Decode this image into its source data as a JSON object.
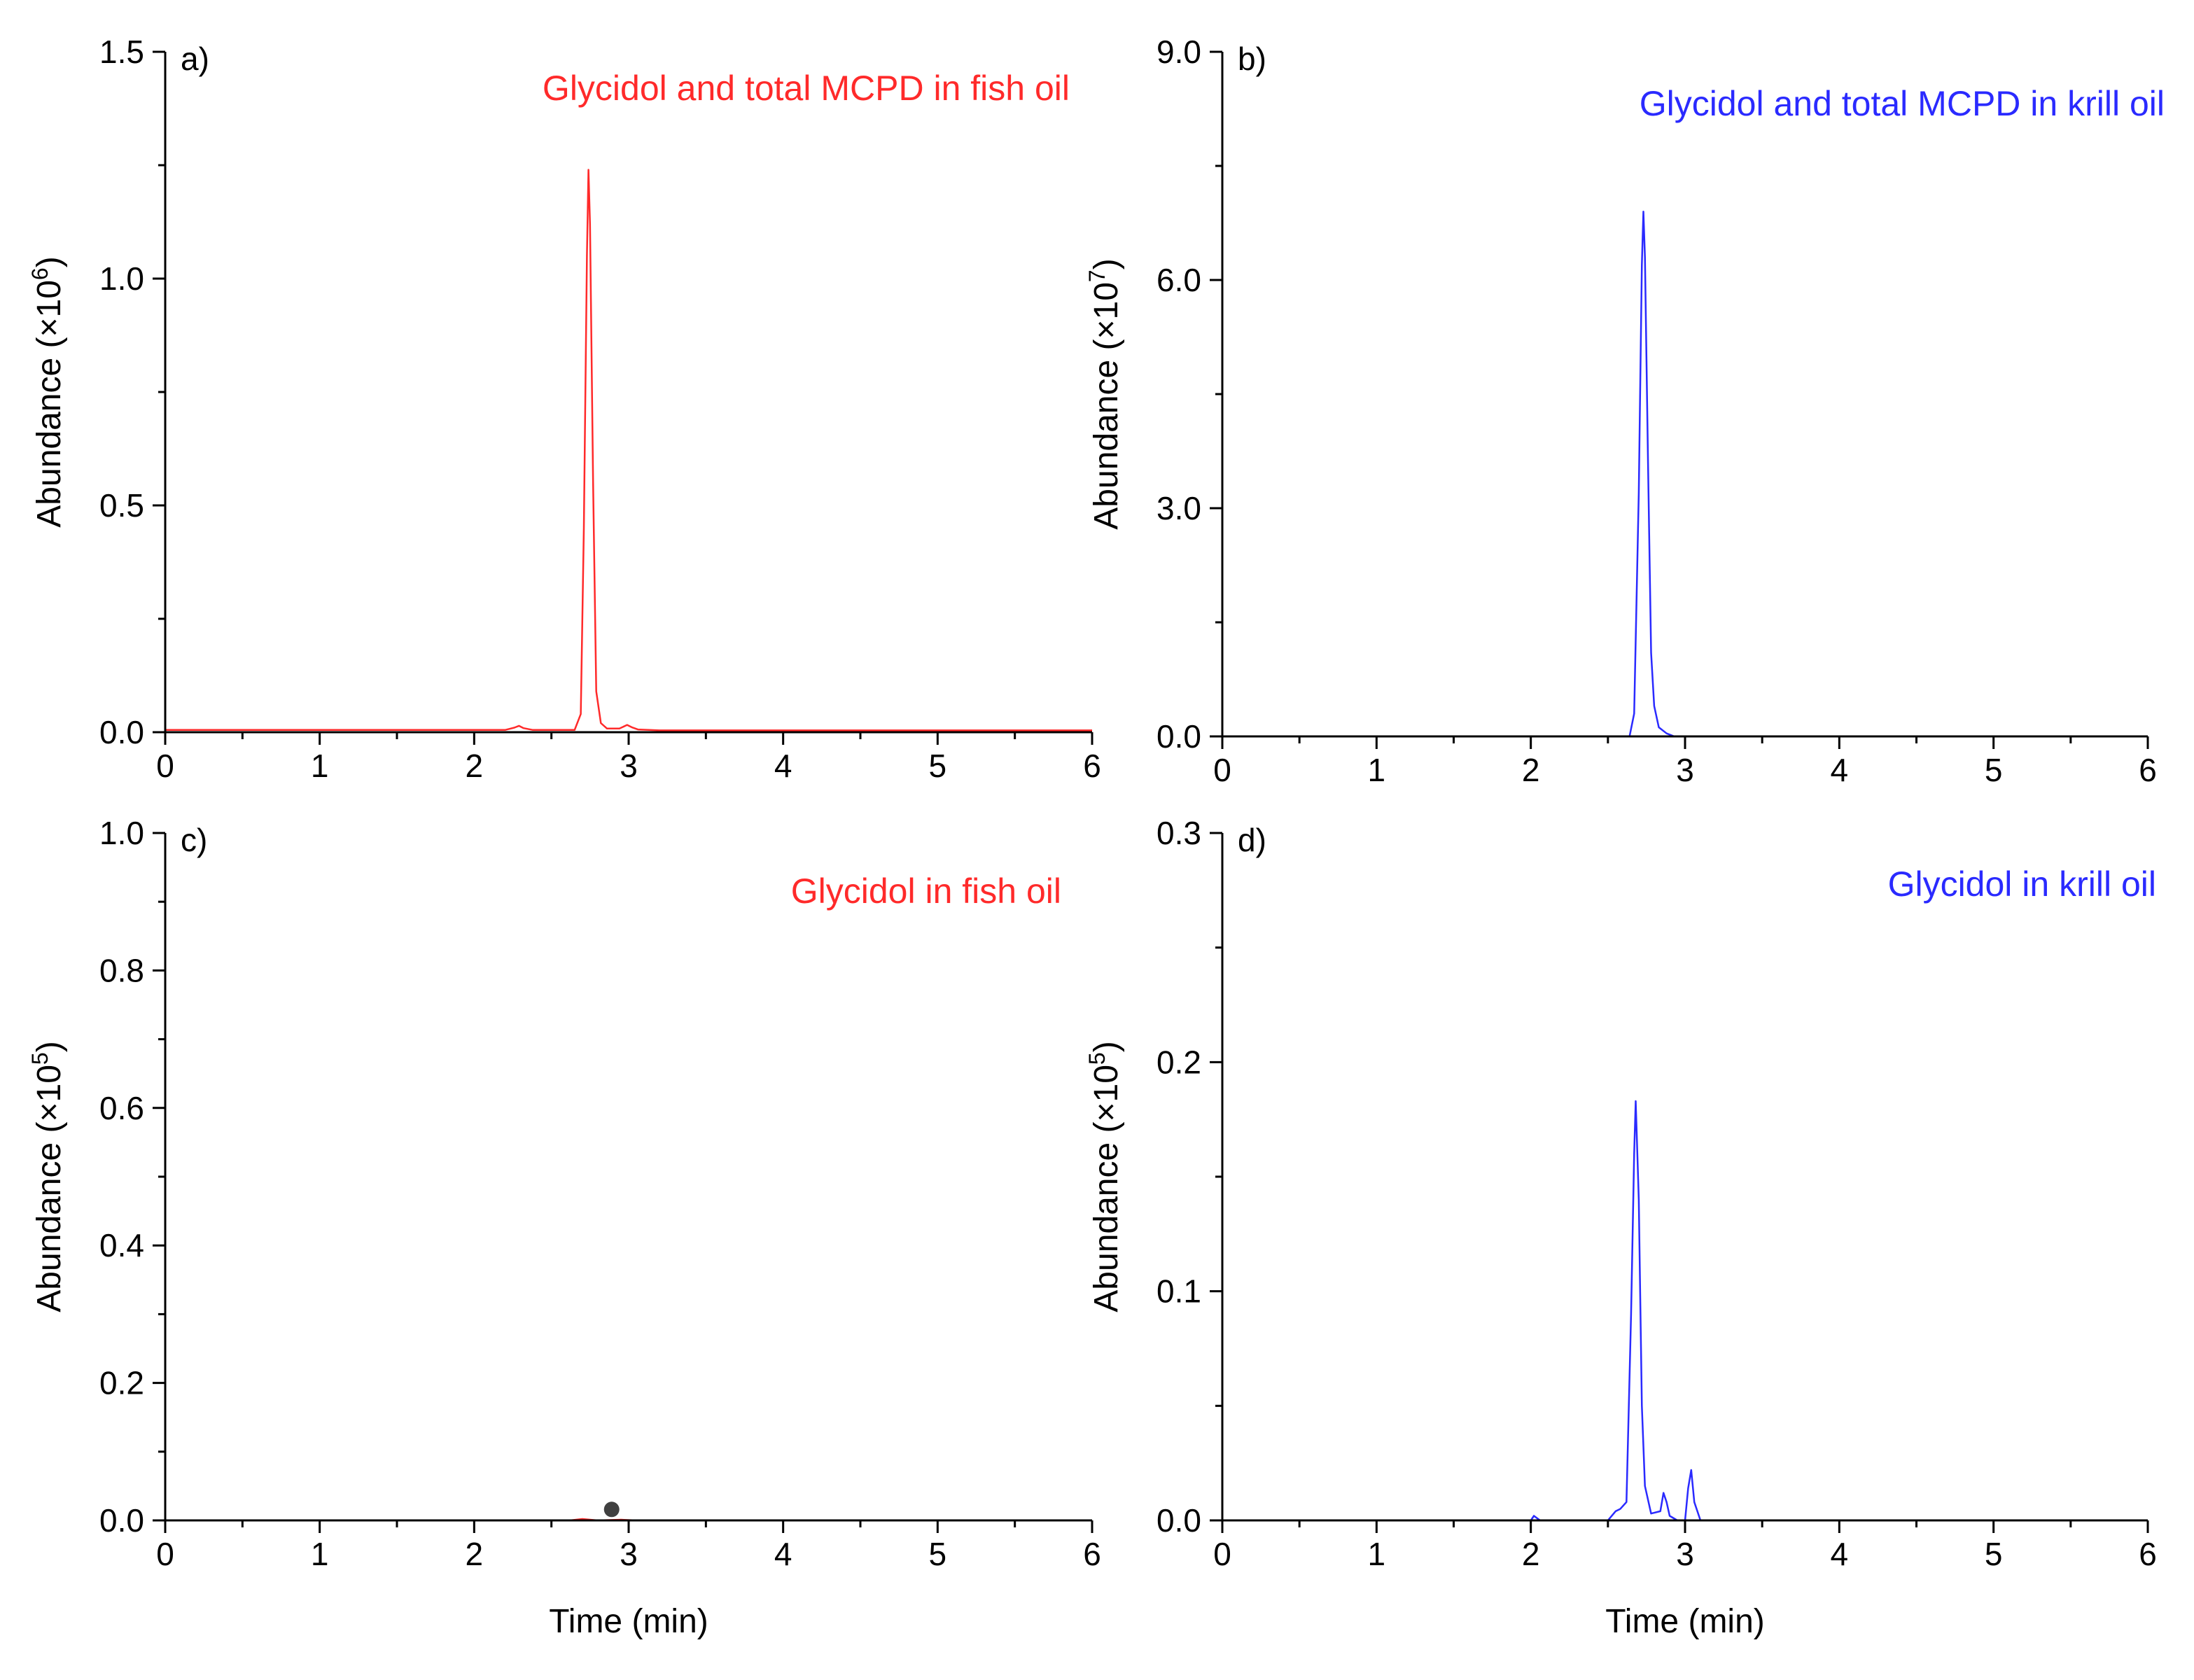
{
  "chart_data": [
    {
      "type": "line",
      "panel_label": "a)",
      "title": "Glycidol and total MCPD in fish oil",
      "xlabel": "Time (min)",
      "xlabel_shown": false,
      "ylabel_main": "Abundance (×10",
      "ylabel_exp": "6",
      "ylabel_close": ")",
      "xlim": [
        0,
        6
      ],
      "ylim": [
        0,
        1.5
      ],
      "x_ticks": [
        0,
        1,
        2,
        3,
        4,
        5,
        6
      ],
      "x_tick_labels": [
        "0",
        "1",
        "2",
        "3",
        "4",
        "5",
        "6"
      ],
      "y_ticks": [
        0,
        0.5,
        1.0,
        1.5
      ],
      "y_tick_labels": [
        "0.0",
        "0.5",
        "1.0",
        "1.5"
      ],
      "color": "#ff2a2a",
      "series": [
        {
          "name": "Glycidol and total MCPD in fish oil",
          "x": [
            0,
            2.2,
            2.26,
            2.29,
            2.32,
            2.38,
            2.65,
            2.69,
            2.71,
            2.73,
            2.74,
            2.75,
            2.77,
            2.79,
            2.82,
            2.86,
            2.94,
            2.99,
            3.02,
            3.06,
            3.2,
            6
          ],
          "y": [
            0.005,
            0.005,
            0.01,
            0.014,
            0.009,
            0.005,
            0.005,
            0.04,
            0.45,
            1.05,
            1.24,
            1.12,
            0.55,
            0.09,
            0.02,
            0.008,
            0.008,
            0.016,
            0.011,
            0.006,
            0.004,
            0.004
          ]
        }
      ]
    },
    {
      "type": "line",
      "panel_label": "b)",
      "title": "Glycidol and total MCPD in krill oil",
      "xlabel": "Time (min)",
      "xlabel_shown": false,
      "ylabel_main": "Abundance (×10",
      "ylabel_exp": "7",
      "ylabel_close": ")",
      "xlim": [
        0,
        6
      ],
      "ylim": [
        0,
        9.0
      ],
      "x_ticks": [
        0,
        1,
        2,
        3,
        4,
        5,
        6
      ],
      "x_tick_labels": [
        "0",
        "1",
        "2",
        "3",
        "4",
        "5",
        "6"
      ],
      "y_ticks": [
        0,
        3.0,
        6.0,
        9.0
      ],
      "y_tick_labels": [
        "0.0",
        "3.0",
        "6.0",
        "9.0"
      ],
      "color": "#2a2aff",
      "series": [
        {
          "name": "Glycidol and total MCPD in krill oil",
          "x": [
            2.64,
            2.67,
            2.7,
            2.72,
            2.73,
            2.74,
            2.76,
            2.78,
            2.8,
            2.83,
            2.88,
            2.93
          ],
          "y": [
            0.0,
            0.3,
            3.2,
            6.2,
            6.9,
            6.3,
            3.6,
            1.1,
            0.4,
            0.12,
            0.04,
            0.0
          ]
        }
      ]
    },
    {
      "type": "line",
      "panel_label": "c)",
      "title": "Glycidol in fish oil",
      "xlabel": "Time (min)",
      "xlabel_shown": true,
      "ylabel_main": "Abundance (×10",
      "ylabel_exp": "5",
      "ylabel_close": ")",
      "xlim": [
        0,
        6
      ],
      "ylim": [
        0,
        1.0
      ],
      "x_ticks": [
        0,
        1,
        2,
        3,
        4,
        5,
        6
      ],
      "x_tick_labels": [
        "0",
        "1",
        "2",
        "3",
        "4",
        "5",
        "6"
      ],
      "y_ticks": [
        0,
        0.2,
        0.4,
        0.6,
        0.8,
        1.0
      ],
      "y_tick_labels": [
        "0.0",
        "0.2",
        "0.4",
        "0.6",
        "0.8",
        "1.0"
      ],
      "color": "#ff2a2a",
      "marker": {
        "x": 2.89,
        "y": 0.016,
        "color": "#404040"
      },
      "series": [
        {
          "name": "Glycidol in fish oil",
          "x": [
            2.62,
            2.7,
            2.8,
            2.95,
            3.05
          ],
          "y": [
            0.0,
            0.002,
            0.0,
            0.001,
            0.0
          ]
        }
      ]
    },
    {
      "type": "line",
      "panel_label": "d)",
      "title": "Glycidol in krill oil",
      "xlabel": "Time (min)",
      "xlabel_shown": true,
      "ylabel_main": "Abundance (×10",
      "ylabel_exp": "5",
      "ylabel_close": ")",
      "xlim": [
        0,
        6
      ],
      "ylim": [
        0,
        0.3
      ],
      "x_ticks": [
        0,
        1,
        2,
        3,
        4,
        5,
        6
      ],
      "x_tick_labels": [
        "0",
        "1",
        "2",
        "3",
        "4",
        "5",
        "6"
      ],
      "y_ticks": [
        0,
        0.1,
        0.2,
        0.3
      ],
      "y_tick_labels": [
        "0.0",
        "0.1",
        "0.2",
        "0.3"
      ],
      "color": "#2a2aff",
      "series": [
        {
          "name": "Glycidol in krill oil",
          "x": [
            2.0,
            2.02,
            2.04,
            2.06,
            2.5,
            2.55,
            2.58,
            2.62,
            2.65,
            2.67,
            2.68,
            2.7,
            2.72,
            2.74,
            2.78,
            2.84,
            2.86,
            2.88,
            2.9,
            2.95,
            3.0,
            3.02,
            3.04,
            3.06,
            3.1
          ],
          "y": [
            0.0,
            0.002,
            0.001,
            0.0,
            0.0,
            0.004,
            0.005,
            0.008,
            0.09,
            0.16,
            0.183,
            0.14,
            0.05,
            0.015,
            0.003,
            0.004,
            0.012,
            0.008,
            0.002,
            0.0,
            0.0,
            0.014,
            0.022,
            0.008,
            0.0
          ]
        }
      ]
    }
  ]
}
